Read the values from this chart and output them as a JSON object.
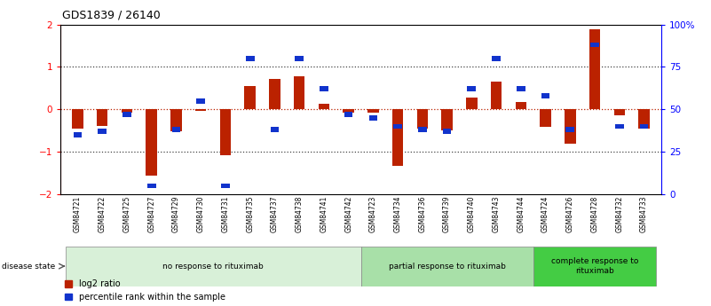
{
  "title": "GDS1839 / 26140",
  "samples": [
    "GSM84721",
    "GSM84722",
    "GSM84725",
    "GSM84727",
    "GSM84729",
    "GSM84730",
    "GSM84731",
    "GSM84735",
    "GSM84737",
    "GSM84738",
    "GSM84741",
    "GSM84742",
    "GSM84723",
    "GSM84734",
    "GSM84736",
    "GSM84739",
    "GSM84740",
    "GSM84743",
    "GSM84744",
    "GSM84724",
    "GSM84726",
    "GSM84728",
    "GSM84732",
    "GSM84733"
  ],
  "log2_ratio": [
    -0.45,
    -0.38,
    -0.08,
    -1.55,
    -0.52,
    -0.04,
    -1.08,
    0.55,
    0.72,
    0.78,
    0.14,
    -0.08,
    -0.08,
    -1.32,
    -0.45,
    -0.5,
    0.28,
    0.65,
    0.18,
    -0.42,
    -0.8,
    1.88,
    -0.14,
    -0.45
  ],
  "percentile_rank": [
    35,
    37,
    47,
    5,
    38,
    55,
    5,
    80,
    38,
    80,
    62,
    47,
    45,
    40,
    38,
    37,
    62,
    80,
    62,
    58,
    38,
    88,
    40,
    40
  ],
  "groups": [
    {
      "label": "no response to rituximab",
      "start": 0,
      "end": 12,
      "color": "#d8f0d8"
    },
    {
      "label": "partial response to rituximab",
      "start": 12,
      "end": 19,
      "color": "#a8e0a8"
    },
    {
      "label": "complete response to\nrituximab",
      "start": 19,
      "end": 24,
      "color": "#44cc44"
    }
  ],
  "ylim": [
    -2,
    2
  ],
  "right_ylim": [
    0,
    100
  ],
  "right_yticks": [
    0,
    25,
    50,
    75,
    100
  ],
  "right_yticklabels": [
    "0",
    "25",
    "50",
    "75",
    "100%"
  ],
  "yticks": [
    -2,
    -1,
    0,
    1,
    2
  ],
  "bar_color_red": "#bb2200",
  "bar_color_blue": "#1133cc",
  "background_color": "#ffffff",
  "label_bg_color": "#c8c8c8"
}
